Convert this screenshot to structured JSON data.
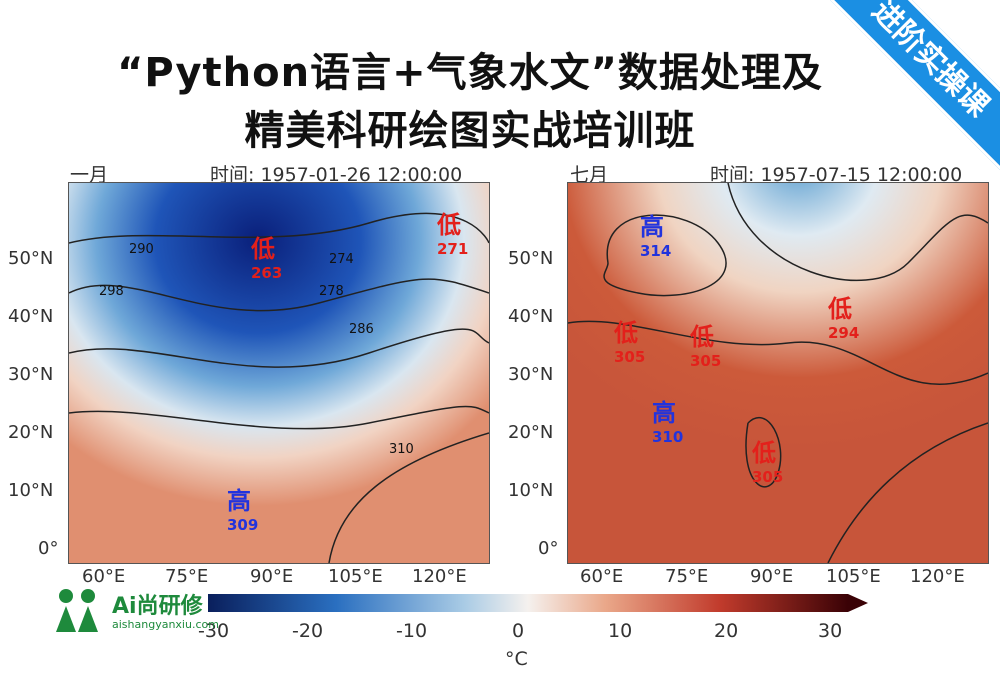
{
  "title_line1": "“Python语言+气象水文”数据处理及",
  "title_line2": "精美科研绘图实战培训班",
  "ribbon_text": "进阶实操课",
  "left_panel": {
    "month": "一月",
    "time": "时间: 1957-01-26 12:00:00",
    "labels": [
      {
        "kind": "低",
        "value": "263",
        "color": "red"
      },
      {
        "kind": "低",
        "value": "271",
        "color": "red"
      },
      {
        "kind": "高",
        "value": "309",
        "color": "blue"
      }
    ],
    "contours": [
      "290",
      "298",
      "274",
      "278",
      "286",
      "310"
    ]
  },
  "right_panel": {
    "month": "七月",
    "time": "时间: 1957-07-15 12:00:00",
    "labels": [
      {
        "kind": "高",
        "value": "314",
        "color": "blue"
      },
      {
        "kind": "低",
        "value": "305",
        "color": "red"
      },
      {
        "kind": "低",
        "value": "305",
        "color": "red"
      },
      {
        "kind": "低",
        "value": "294",
        "color": "red"
      },
      {
        "kind": "高",
        "value": "310",
        "color": "blue"
      },
      {
        "kind": "低",
        "value": "305",
        "color": "red"
      }
    ]
  },
  "lat_ticks": [
    "50°N",
    "40°N",
    "30°N",
    "20°N",
    "10°N",
    "0°"
  ],
  "lon_ticks": [
    "60°E",
    "75°E",
    "90°E",
    "105°E",
    "120°E"
  ],
  "colorbar": {
    "ticks": [
      "-30",
      "-20",
      "-10",
      "0",
      "10",
      "20",
      "30"
    ],
    "unit": "°C"
  },
  "logo": {
    "name": "Ai尚研修",
    "url": "aishangyanxiu.com"
  }
}
